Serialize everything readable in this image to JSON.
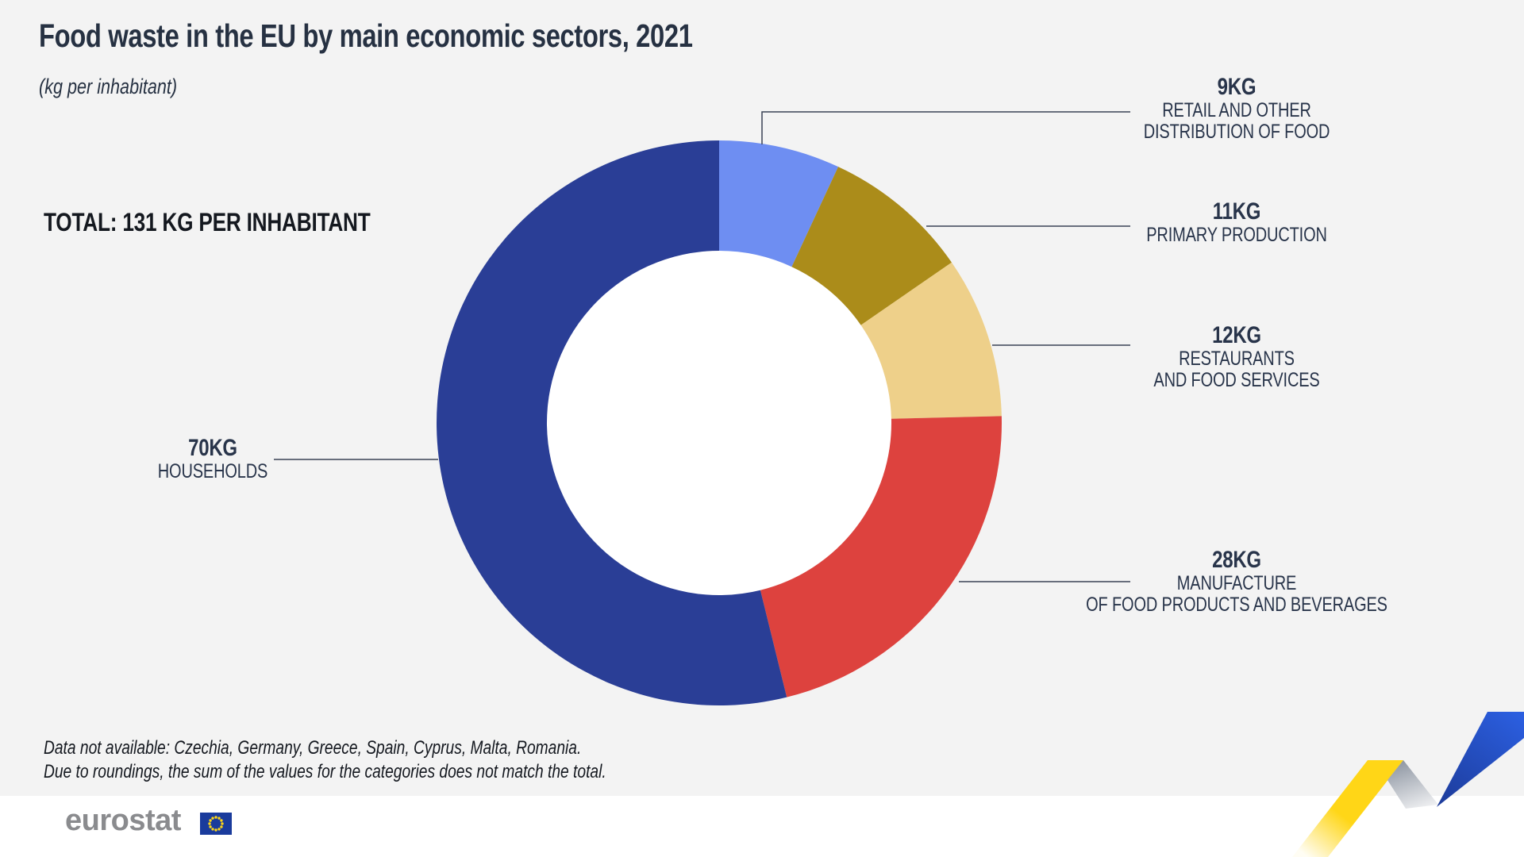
{
  "header": {
    "title": "Food waste in the EU by main economic sectors, 2021",
    "subtitle": "(kg per inhabitant)"
  },
  "total_label": "TOTAL: 131 KG PER INHABITANT",
  "chart_data": {
    "type": "pie",
    "variant": "donut",
    "title": "Food waste in the EU by main economic sectors, 2021",
    "unit": "kg per inhabitant",
    "total_value": 131,
    "start_angle": "12 o'clock",
    "direction": "clockwise",
    "legend_position": "outside-callouts",
    "segments": [
      {
        "name": "Retail and other distribution of food",
        "value": 9,
        "value_label": "9KG",
        "lines": [
          "RETAIL AND OTHER",
          "DISTRIBUTION OF FOOD"
        ],
        "color": "#6E8EF2"
      },
      {
        "name": "Primary production",
        "value": 11,
        "value_label": "11KG",
        "lines": [
          "PRIMARY PRODUCTION"
        ],
        "color": "#AB8C1A"
      },
      {
        "name": "Restaurants and food services",
        "value": 12,
        "value_label": "12KG",
        "lines": [
          "RESTAURANTS",
          "AND FOOD SERVICES"
        ],
        "color": "#EED08A"
      },
      {
        "name": "Manufacture of food products and beverages",
        "value": 28,
        "value_label": "28KG",
        "lines": [
          "MANUFACTURE",
          "OF FOOD PRODUCTS AND BEVERAGES"
        ],
        "color": "#DD423E"
      },
      {
        "name": "Households",
        "value": 70,
        "value_label": "70KG",
        "lines": [
          "HOUSEHOLDS"
        ],
        "color": "#2A3E96"
      }
    ]
  },
  "footnotes": [
    "Data not available:  Czechia, Germany, Greece, Spain, Cyprus, Malta, Romania.",
    "Due to roundings, the sum of the values for the categories does not match the total."
  ],
  "footer": {
    "brand": "eurostat",
    "flag": {
      "field_color": "#1A3B9C",
      "star_color": "#FFD617"
    }
  },
  "colors": {
    "background": "#F3F3F3",
    "footer_background": "#FFFFFF",
    "title_text": "#263142",
    "label_text": "#28344A",
    "leader_line": "#3A4354",
    "donut_hole": "#FFFFFF",
    "ribbon_yellow": "#FFD617",
    "ribbon_blue_dark": "#1D3C9B",
    "ribbon_blue_bright": "#2B5EDF"
  }
}
